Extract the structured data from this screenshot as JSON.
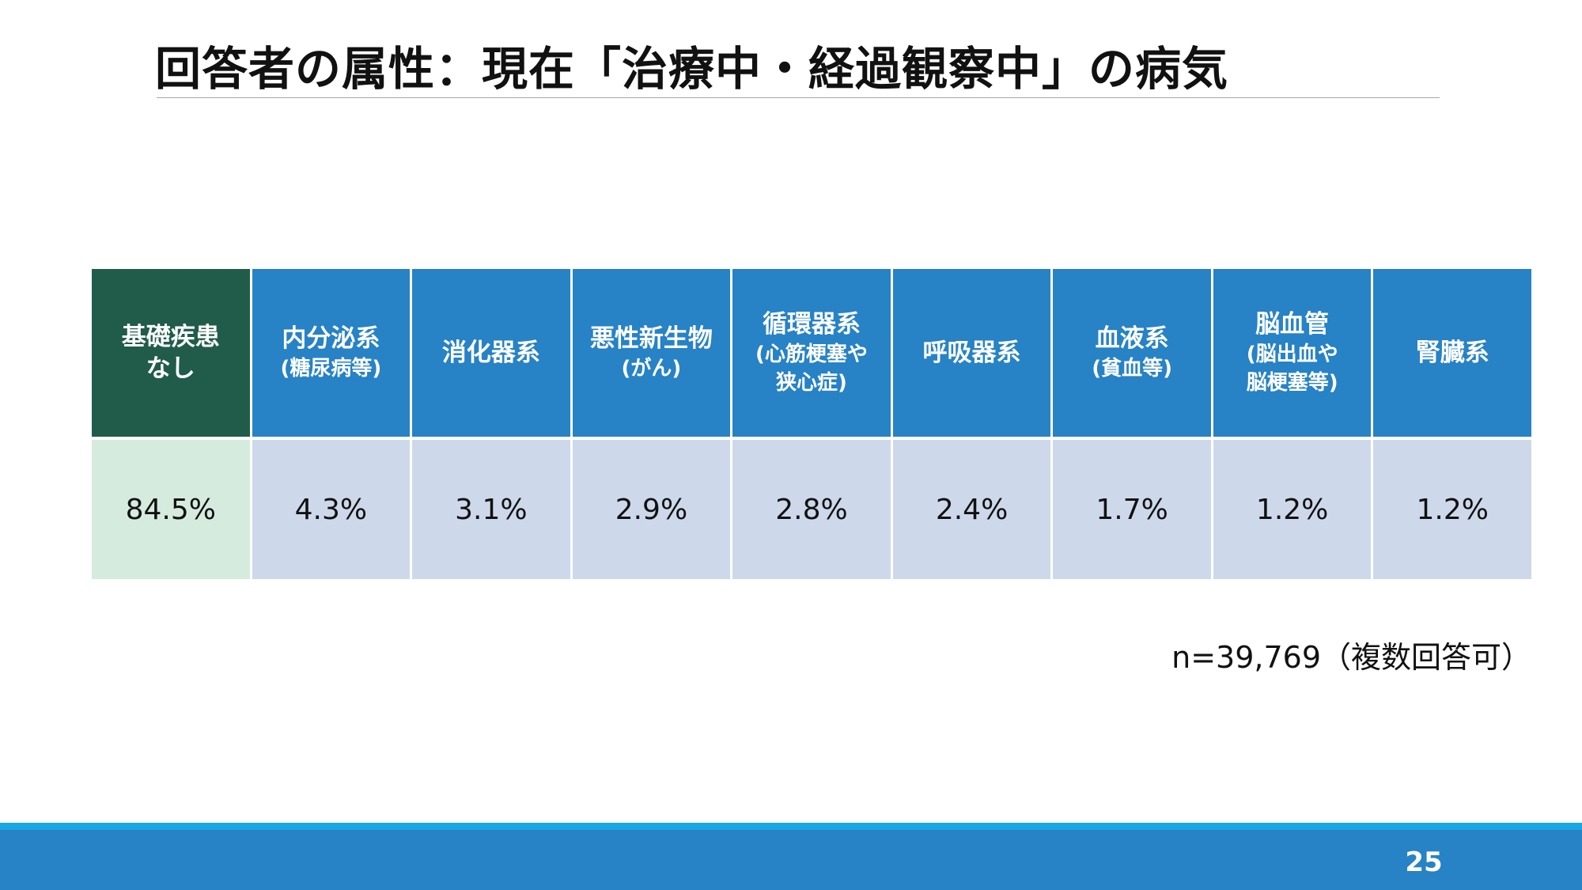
{
  "title": "回答者の属性：現在「治療中・経過観察中」の病気",
  "table": {
    "columns": [
      {
        "label": "基礎疾患",
        "label2": "なし",
        "sub": "",
        "sub2": "",
        "value": "84.5%"
      },
      {
        "label": "内分泌系",
        "label2": "",
        "sub": "(糖尿病等)",
        "sub2": "",
        "value": "4.3%"
      },
      {
        "label": "消化器系",
        "label2": "",
        "sub": "",
        "sub2": "",
        "value": "3.1%"
      },
      {
        "label": "悪性新生物",
        "label2": "",
        "sub": "(がん)",
        "sub2": "",
        "value": "2.9%"
      },
      {
        "label": "循環器系",
        "label2": "",
        "sub": "(心筋梗塞や",
        "sub2": "狭心症)",
        "value": "2.8%"
      },
      {
        "label": "呼吸器系",
        "label2": "",
        "sub": "",
        "sub2": "",
        "value": "2.4%"
      },
      {
        "label": "血液系",
        "label2": "",
        "sub": "(貧血等)",
        "sub2": "",
        "value": "1.7%"
      },
      {
        "label": "脳血管",
        "label2": "",
        "sub": "(脳出血や",
        "sub2": "脳梗塞等)",
        "value": "1.2%"
      },
      {
        "label": "腎臓系",
        "label2": "",
        "sub": "",
        "sub2": "",
        "value": "1.2%"
      }
    ]
  },
  "note": "n=39,769（複数回答可）",
  "page_number": "25",
  "colors": {
    "header_blue": "#2782c6",
    "header_green": "#215c4a",
    "value_blue": "#cdd9ea",
    "value_green": "#d5ebde",
    "footer_accent": "#1aa6e4"
  }
}
